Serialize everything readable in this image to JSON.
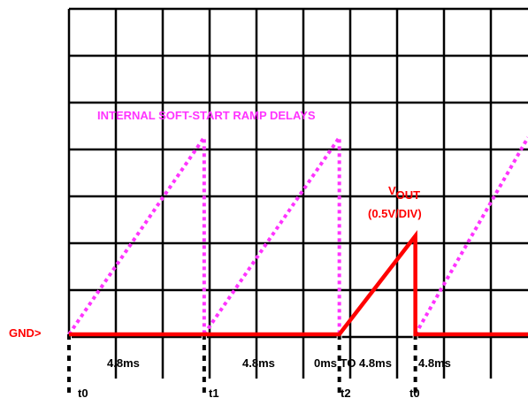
{
  "chart_data": {
    "type": "line",
    "title": "INTERNAL SOFT-START RAMP DELAYS",
    "ground_label": "GND>",
    "vout_label": {
      "main": "V",
      "subscript": "OUT",
      "scale": "(0.5V/DIV)"
    },
    "interval_labels": [
      "4.8ms",
      "4.8ms",
      "0ms TO 4.8ms",
      "4.8ms"
    ],
    "time_markers": [
      "t0",
      "t1",
      "t2",
      "t0"
    ],
    "series": [
      {
        "role": "soft-start ramps",
        "color": "#ff33ff",
        "style": "dotted",
        "segments": [
          {
            "x": [
              0,
              4.8,
              4.8
            ],
            "y": [
              0,
              4.2,
              0
            ]
          },
          {
            "x": [
              4.8,
              9.6,
              9.6
            ],
            "y": [
              0,
              4.2,
              0
            ]
          },
          {
            "x": [
              12.3,
              16.3
            ],
            "y": [
              0,
              4.2
            ]
          }
        ]
      },
      {
        "role": "VOUT",
        "color": "#ff0000",
        "style": "solid",
        "x": [
          0,
          9.6,
          12.3,
          12.3,
          16.3
        ],
        "y": [
          0,
          0,
          2.1,
          0,
          0
        ]
      }
    ],
    "marker_times": [
      0,
      4.8,
      9.6,
      12.3
    ],
    "xlim": [
      0,
      16.3
    ],
    "ylim": [
      -0.55,
      7
    ],
    "grid": true,
    "colors": {
      "ramp": "#ff33ff",
      "vout": "#ff0000",
      "grid": "#000000"
    }
  }
}
